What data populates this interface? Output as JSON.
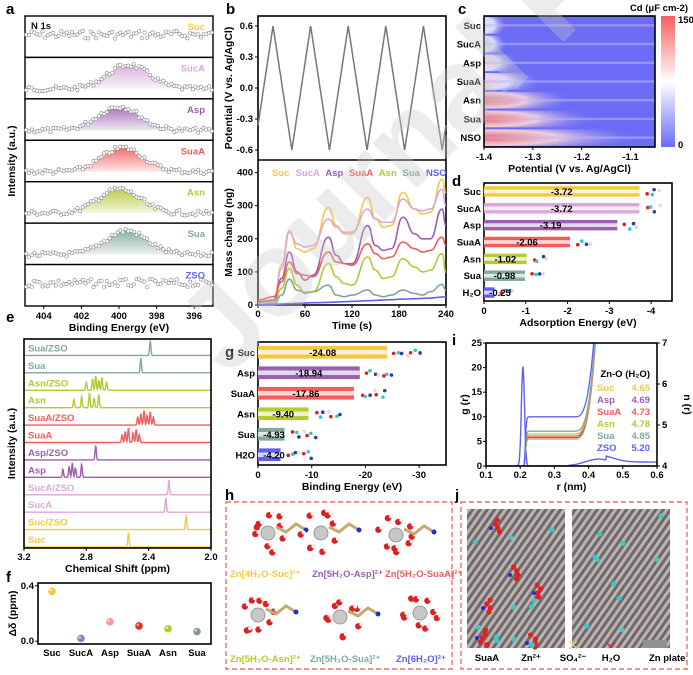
{
  "watermark": "Journal Pre-proof",
  "colors": {
    "Suc": "#f5c842",
    "SucA": "#d9a8d8",
    "Asp": "#9b5fb0",
    "SuaA": "#f25c5c",
    "Asn": "#b5c932",
    "Sua": "#7fa898",
    "ZSO": "#6060f0",
    "NSO": "#6060f0",
    "H2O": "#6060f0"
  },
  "chart_data": [
    {
      "panel": "a",
      "type": "area",
      "title": "N 1s",
      "xlabel": "Binding Energy (eV)",
      "ylabel": "Intensity (a.u.)",
      "xlim": [
        405,
        395
      ],
      "xticks": [
        404,
        402,
        400,
        398,
        396
      ],
      "series": [
        {
          "name": "Suc",
          "peak": null
        },
        {
          "name": "SucA",
          "peak": 399.5
        },
        {
          "name": "Asp",
          "peak": 400.0
        },
        {
          "name": "SuaA",
          "peak": 399.8
        },
        {
          "name": "Asn",
          "peak": 400.0
        },
        {
          "name": "Sua",
          "peak": 399.6
        },
        {
          "name": "ZSO",
          "peak": null
        }
      ]
    },
    {
      "panel": "b-top",
      "type": "line",
      "ylabel": "Potential (V vs. Ag/AgCl)",
      "ylim": [
        -0.6,
        0.6
      ],
      "yticks": [
        "0.6",
        "0.3",
        "0.0",
        "-0.3",
        "-0.6"
      ],
      "xlim": [
        0,
        240
      ],
      "cycles": 5,
      "amplitude": 0.6
    },
    {
      "panel": "b-bottom",
      "type": "line",
      "xlabel": "Time (s)",
      "ylabel": "Mass change (ng)",
      "xlim": [
        0,
        240
      ],
      "ylim": [
        0,
        420
      ],
      "xticks": [
        "0",
        "60",
        "120",
        "180",
        "240"
      ],
      "yticks": [
        "0",
        "100",
        "200",
        "300",
        "400"
      ],
      "legend": [
        "Suc",
        "SucA",
        "Asp",
        "SuaA",
        "Asn",
        "Sua",
        "NSO"
      ],
      "x": [
        0,
        20,
        30,
        40,
        50,
        60,
        70,
        90,
        100,
        110,
        120,
        140,
        150,
        160,
        170,
        185,
        200,
        210,
        220,
        235,
        240
      ],
      "series": [
        {
          "name": "Suc",
          "values": [
            5,
            10,
            120,
            225,
            170,
            160,
            170,
            295,
            240,
            215,
            215,
            325,
            260,
            235,
            240,
            340,
            290,
            275,
            280,
            380,
            340
          ]
        },
        {
          "name": "SucA",
          "values": [
            5,
            10,
            110,
            220,
            185,
            175,
            180,
            260,
            235,
            220,
            220,
            290,
            260,
            250,
            250,
            320,
            290,
            285,
            290,
            350,
            300
          ]
        },
        {
          "name": "Asp",
          "values": [
            10,
            15,
            80,
            160,
            100,
            75,
            90,
            205,
            150,
            125,
            125,
            240,
            180,
            165,
            170,
            265,
            215,
            200,
            200,
            290,
            240
          ]
        },
        {
          "name": "SuaA",
          "values": [
            15,
            25,
            70,
            130,
            95,
            90,
            85,
            160,
            130,
            125,
            120,
            185,
            155,
            140,
            145,
            190,
            170,
            160,
            165,
            205,
            180
          ]
        },
        {
          "name": "Asn",
          "values": [
            5,
            5,
            50,
            110,
            60,
            35,
            40,
            125,
            85,
            65,
            60,
            145,
            105,
            80,
            85,
            140,
            115,
            100,
            105,
            155,
            100
          ]
        },
        {
          "name": "Sua",
          "values": [
            0,
            0,
            30,
            78,
            45,
            38,
            40,
            60,
            30,
            25,
            30,
            45,
            30,
            25,
            30,
            45,
            35,
            30,
            40,
            62,
            45
          ]
        },
        {
          "name": "NSO",
          "values": [
            0,
            2,
            3,
            4,
            5,
            6,
            7,
            8,
            9,
            10,
            11,
            13,
            14,
            15,
            16,
            18,
            19,
            20,
            21,
            24,
            25
          ]
        }
      ]
    },
    {
      "panel": "c",
      "type": "heatmap",
      "colorbar_label": "Cd (μF cm-2)",
      "clim": [
        0,
        150
      ],
      "xlabel": "Potential (V vs. Ag/AgCl)",
      "xlim": [
        -1.4,
        -1.05
      ],
      "xticks": [
        "-1.4",
        "-1.3",
        "-1.2",
        "-1.1"
      ],
      "rows": [
        "Suc",
        "SucA",
        "Asp",
        "SuaA",
        "Asn",
        "Sua",
        "NSO"
      ],
      "peak_at_min_potential": [
        35,
        40,
        55,
        70,
        120,
        130,
        150
      ],
      "peak_extent": [
        0.02,
        0.02,
        0.03,
        0.05,
        0.08,
        0.1,
        0.14
      ]
    },
    {
      "panel": "d",
      "type": "bar",
      "orientation": "horizontal",
      "xlabel": "Adsorption Energy (eV)",
      "xlim": [
        0,
        -4.5
      ],
      "xticks": [
        "0",
        "-1",
        "-2",
        "-3",
        "-4"
      ],
      "categories": [
        "Suc",
        "SucA",
        "Asp",
        "SuaA",
        "Asn",
        "Sua",
        "H2O"
      ],
      "category_labels": [
        "Suc",
        "SucA",
        "Asp",
        "SuaA",
        "Asn",
        "Sua",
        "H₂O"
      ],
      "values": [
        -3.72,
        -3.72,
        -3.19,
        -2.06,
        -1.02,
        -0.98,
        -0.25
      ],
      "value_labels": [
        "-3.72",
        "-3.72",
        "-3.19",
        "-2.06",
        "-1.02",
        "-0.98",
        "-0.25"
      ]
    },
    {
      "panel": "e",
      "type": "line",
      "xlabel": "Chemical Shift (ppm)",
      "ylabel": "Intensity (a.u.)",
      "xlim": [
        3.2,
        2.0
      ],
      "xticks": [
        "3.2",
        "2.8",
        "2.4",
        "2.0"
      ],
      "traces": [
        {
          "name": "Sua/ZSO",
          "color_key": "Sua",
          "peaks": [
            2.39
          ]
        },
        {
          "name": "Sua",
          "color_key": "Sua",
          "peaks": [
            2.45
          ]
        },
        {
          "name": "Asn/ZSO",
          "color_key": "Asn",
          "peaks": [
            2.8,
            2.76,
            2.74,
            2.72,
            2.7,
            2.67
          ]
        },
        {
          "name": "Asn",
          "color_key": "Asn",
          "peaks": [
            2.88,
            2.83,
            2.78,
            2.75,
            2.72
          ]
        },
        {
          "name": "SuaA/ZSO",
          "color_key": "SuaA",
          "peaks": [
            2.47,
            2.45,
            2.43,
            2.41,
            2.39,
            2.37
          ]
        },
        {
          "name": "SuaA",
          "color_key": "SuaA",
          "peaks": [
            2.57,
            2.55,
            2.53,
            2.5,
            2.48,
            2.46
          ]
        },
        {
          "name": "Asp/ZSO",
          "color_key": "Asp",
          "peaks": [
            2.74
          ]
        },
        {
          "name": "Asp",
          "color_key": "Asp",
          "peaks": [
            2.95,
            2.91,
            2.89,
            2.87,
            2.83
          ]
        },
        {
          "name": "SucA/ZSO",
          "color_key": "SucA",
          "peaks": [
            2.27
          ]
        },
        {
          "name": "SucA",
          "color_key": "SucA",
          "peaks": [
            2.29
          ]
        },
        {
          "name": "Suc/ZSO",
          "color_key": "Suc",
          "peaks": [
            2.16
          ]
        },
        {
          "name": "Suc",
          "color_key": "Suc",
          "peaks": [
            2.53
          ]
        }
      ]
    },
    {
      "panel": "f",
      "type": "scatter",
      "ylabel": "Δδ (ppm)",
      "ylim": [
        -0.02,
        0.42
      ],
      "yticks": [
        "0.0",
        "0.4"
      ],
      "categories": [
        "Suc",
        "SucA",
        "Asp",
        "SuaA",
        "Asn",
        "Sua"
      ],
      "values": [
        0.36,
        0.02,
        0.14,
        0.11,
        0.09,
        0.07
      ],
      "point_colors": [
        "#f5c842",
        "#9b7fc0",
        "#f49a9a",
        "#e03020",
        "#b5c932",
        "#889898"
      ]
    },
    {
      "panel": "g",
      "type": "bar",
      "orientation": "horizontal",
      "xlabel": "Binding Energy (eV)",
      "xlim": [
        0,
        -35
      ],
      "xticks": [
        "0",
        "-10",
        "-20",
        "-30"
      ],
      "categories": [
        "Suc",
        "Asp",
        "SuaA",
        "Asn",
        "Sua",
        "H2O"
      ],
      "values": [
        -24.08,
        -18.94,
        -17.86,
        -9.4,
        -4.93,
        -4.2
      ],
      "value_labels": [
        "-24.08",
        "-18.94",
        "-17.86",
        "-9.40",
        "-4.93",
        "-4.20"
      ]
    },
    {
      "panel": "i",
      "type": "line",
      "xlabel": "r (nm)",
      "ylabel": "g (r)",
      "ylabel_right": "n (r)",
      "xlim": [
        0.1,
        0.6
      ],
      "ylim": [
        0,
        25
      ],
      "ylim_right": [
        4,
        7
      ],
      "xticks": [
        "0.1",
        "0.2",
        "0.3",
        "0.4",
        "0.5",
        "0.6"
      ],
      "yticks": [
        "0",
        "5",
        "10",
        "15",
        "20",
        "25"
      ],
      "yticks_right": [
        "4",
        "5",
        "6",
        "7"
      ],
      "legend_title": "Zn-O (H₂O)",
      "legend": [
        {
          "name": "Suc",
          "value": "4.65"
        },
        {
          "name": "Asp",
          "value": "4.69"
        },
        {
          "name": "SuaA",
          "value": "4.73"
        },
        {
          "name": "Asn",
          "value": "4.78"
        },
        {
          "name": "Sua",
          "value": "4.85"
        },
        {
          "name": "ZSO",
          "value": "5.20"
        }
      ],
      "gr_peak": {
        "r": 0.208,
        "g": 20.3
      },
      "nr_plateau": [
        4.65,
        4.69,
        4.73,
        4.78,
        4.85,
        5.2
      ]
    }
  ],
  "panels": {
    "a": "a",
    "b": "b",
    "c": "c",
    "d": "d",
    "e": "e",
    "f": "f",
    "g": "g",
    "h": "h",
    "i": "i",
    "j": "j"
  },
  "panel_h": {
    "labels": [
      {
        "text": "Zn[4H₂O-Suc]²⁺",
        "color_key": "Suc"
      },
      {
        "text": "Zn[5H₂O-Asp]²⁺",
        "color_key": "Asp"
      },
      {
        "text": "Zn[5H₂O-SuaA]²⁺",
        "color_key": "SuaA"
      },
      {
        "text": "Zn[5H₂O-Asn]²⁺",
        "color_key": "Asn"
      },
      {
        "text": "Zn[5H₂O-Sua]²⁺",
        "color_key": "Sua"
      },
      {
        "text": "Zn[6H₂O]²⁺",
        "color_key": "ZSO"
      }
    ]
  },
  "panel_j": {
    "legend": [
      "SuaA",
      "Zn²⁺",
      "SO₄²⁻",
      "H₂O",
      "Zn plate"
    ]
  }
}
